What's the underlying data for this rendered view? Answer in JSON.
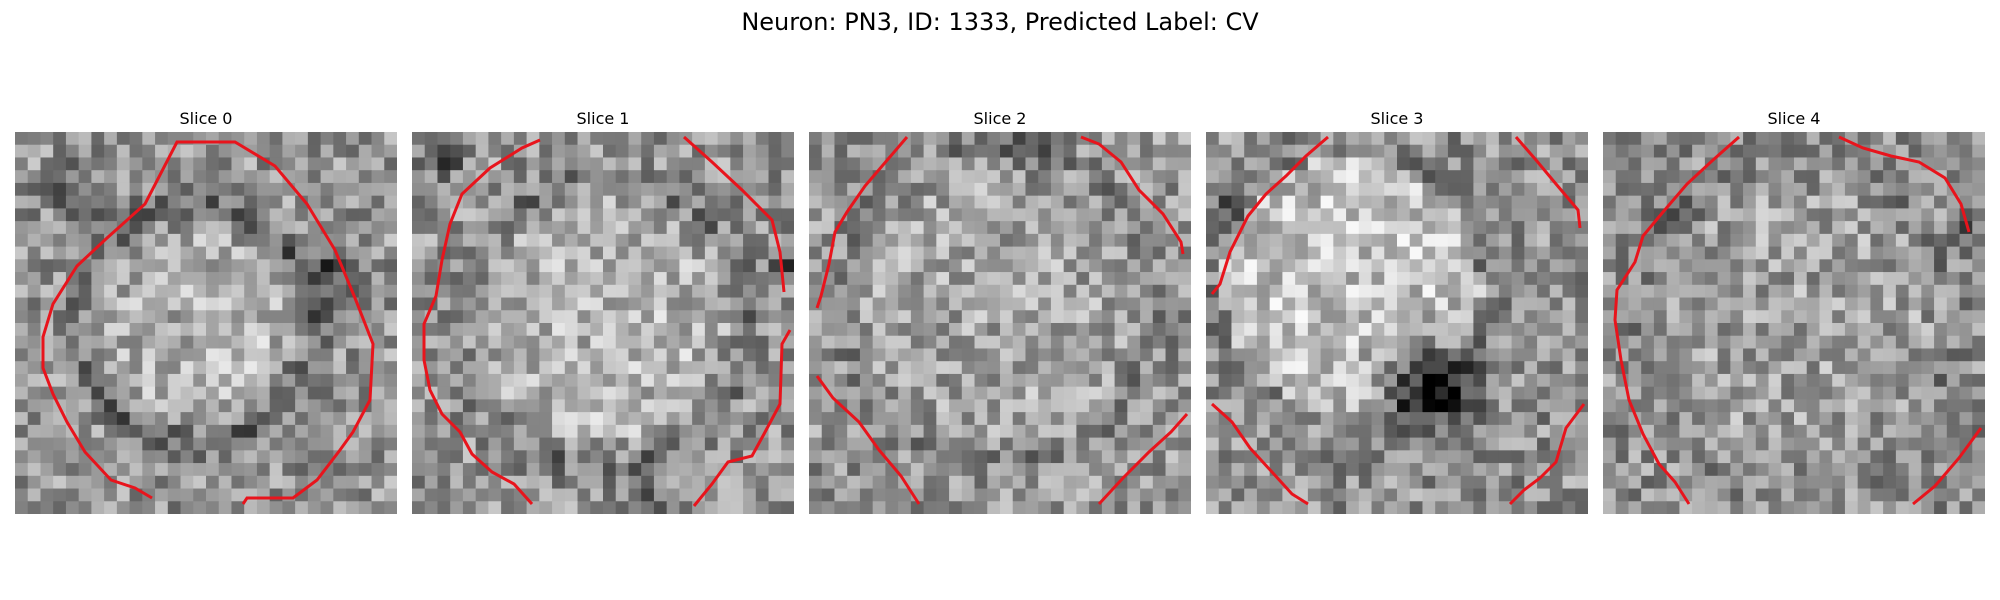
{
  "figure": {
    "title": "Neuron: PN3, ID: 1333, Predicted Label: CV"
  },
  "panels": [
    {
      "title": "Slice 0"
    },
    {
      "title": "Slice 1"
    },
    {
      "title": "Slice 2"
    },
    {
      "title": "Slice 3"
    },
    {
      "title": "Slice 4"
    }
  ],
  "colors": {
    "contour": "#e8141c",
    "colormap": "grayscale"
  }
}
